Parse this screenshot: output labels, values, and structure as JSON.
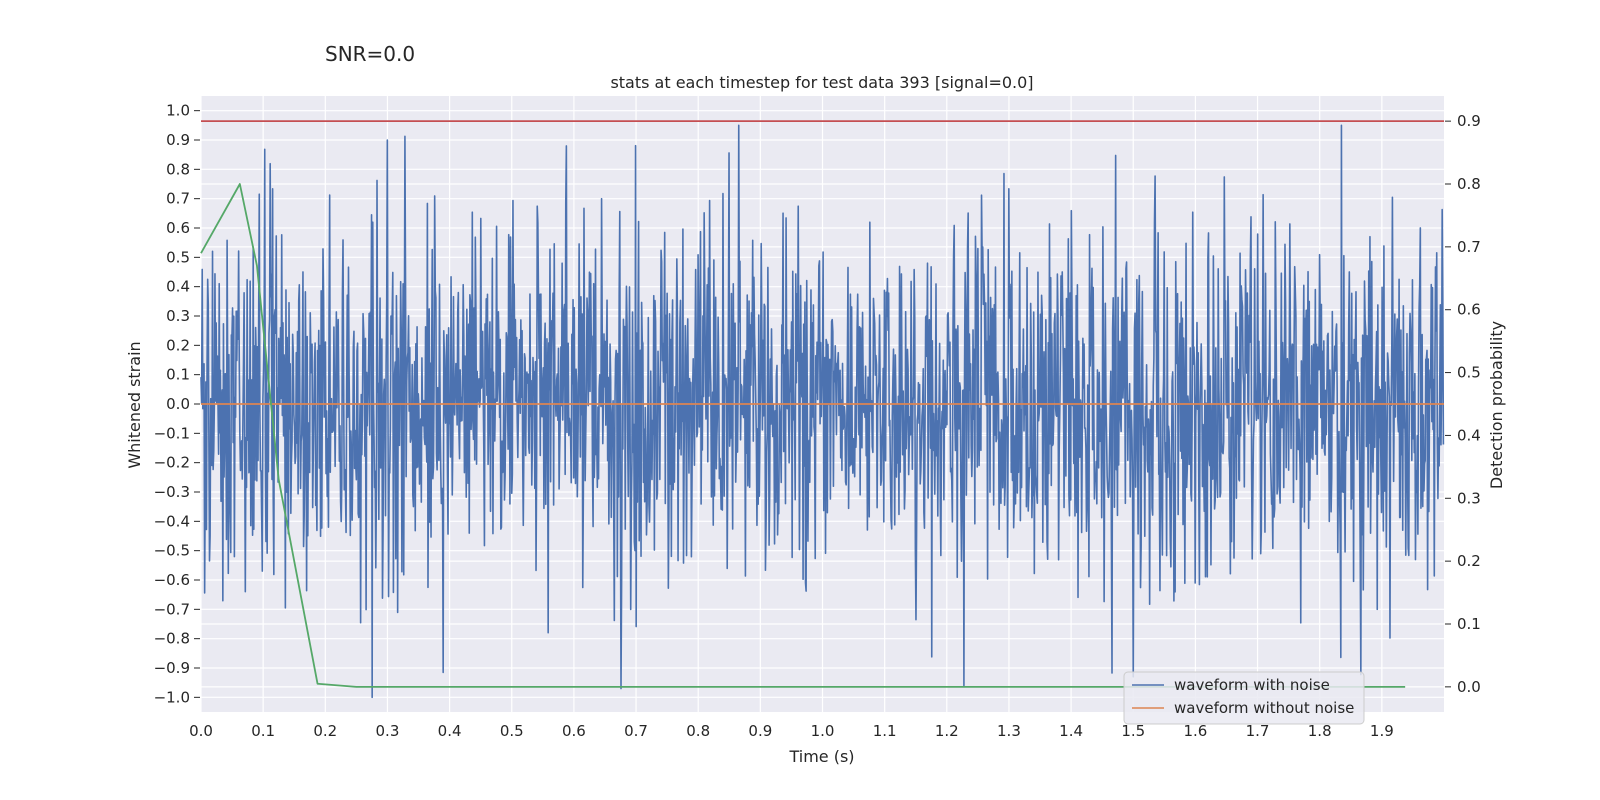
{
  "figure": {
    "suptitle": "SNR=0.0"
  },
  "chart_data": {
    "type": "line",
    "title": "stats at each timestep for test data 393 [signal=0.0]",
    "xlabel": "Time (s)",
    "ylabel": "Whitened strain",
    "y2label": "Detection probability",
    "xlim": [
      0.0,
      2.0
    ],
    "ylim": [
      -1.05,
      1.05
    ],
    "y2lim": [
      -0.04,
      0.94
    ],
    "xticks": [
      "0.0",
      "0.1",
      "0.2",
      "0.3",
      "0.4",
      "0.5",
      "0.6",
      "0.7",
      "0.8",
      "0.9",
      "1.0",
      "1.1",
      "1.2",
      "1.3",
      "1.4",
      "1.5",
      "1.6",
      "1.7",
      "1.8",
      "1.9"
    ],
    "yticks": [
      "1.0",
      "0.9",
      "0.8",
      "0.7",
      "0.6",
      "0.5",
      "0.4",
      "0.3",
      "0.2",
      "0.1",
      "0.0",
      "-0.1",
      "-0.2",
      "-0.3",
      "-0.4",
      "-0.5",
      "-0.6",
      "-0.7",
      "-0.8",
      "-0.9",
      "-1.0"
    ],
    "y2ticks": [
      "0.9",
      "0.8",
      "0.7",
      "0.6",
      "0.5",
      "0.4",
      "0.3",
      "0.2",
      "0.1",
      "0.0"
    ],
    "grid": true,
    "legend_position": "lower-right",
    "colors": {
      "noisy": "#4c72b0",
      "clean": "#dd8452",
      "prob": "#55a868",
      "threshold": "#c44e52",
      "plot_bg": "#eaeaf2",
      "grid": "#ffffff"
    },
    "series": [
      {
        "name": "waveform with noise",
        "axis": "left",
        "x_start": 0.0,
        "x_end": 2.0,
        "n_points": 2048,
        "description": "whitened noise, zero mean",
        "peaks": [
          {
            "x": 0.865,
            "y": 0.95
          },
          {
            "x": 1.835,
            "y": 0.95
          },
          {
            "x": 0.3,
            "y": 0.9
          },
          {
            "x": 0.588,
            "y": 0.88
          },
          {
            "x": 0.275,
            "y": -1.0
          },
          {
            "x": 0.676,
            "y": -0.97
          },
          {
            "x": 1.228,
            "y": -0.96
          },
          {
            "x": 1.5,
            "y": -0.93
          }
        ]
      },
      {
        "name": "waveform without noise",
        "axis": "left",
        "x": [
          0.0,
          2.0
        ],
        "y": [
          0.0,
          0.0
        ]
      },
      {
        "name": "detection probability",
        "axis": "right",
        "x": [
          0.0,
          0.0625,
          0.09,
          0.125,
          0.1875,
          0.25,
          0.3125,
          0.5,
          1.0,
          1.5,
          1.9375
        ],
        "y": [
          0.69,
          0.8,
          0.67,
          0.33,
          0.005,
          0.0,
          0.0,
          0.0,
          0.0,
          0.0,
          0.0
        ]
      },
      {
        "name": "threshold",
        "axis": "right",
        "x": [
          0.0,
          2.0
        ],
        "y": [
          0.9,
          0.9
        ]
      }
    ],
    "legend": [
      "waveform with noise",
      "waveform without noise"
    ]
  }
}
